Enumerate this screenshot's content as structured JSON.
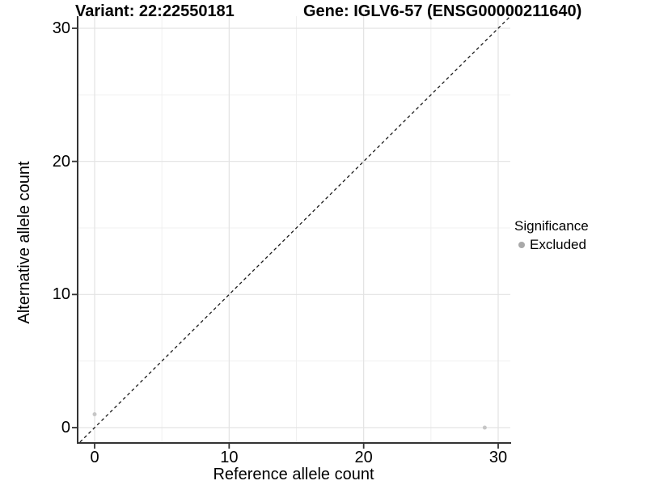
{
  "titles": {
    "variant": "Variant: 22:22550181",
    "gene": "Gene: IGLV6-57 (ENSG00000211640)"
  },
  "chart_data": {
    "type": "scatter",
    "title": "Variant: 22:22550181 / Gene: IGLV6-57 (ENSG00000211640)",
    "xlabel": "Reference allele count",
    "ylabel": "Alternative allele count",
    "x_ticks": [
      0,
      10,
      20,
      30
    ],
    "y_ticks": [
      0,
      10,
      20,
      30
    ],
    "x_minor_ticks": [
      5,
      15,
      25
    ],
    "y_minor_ticks": [
      5,
      15,
      25
    ],
    "xlim": [
      -1.32,
      30.9
    ],
    "ylim": [
      -1.09,
      30.9
    ],
    "grid": true,
    "identity_line": {
      "slope": 1,
      "intercept": 0,
      "style": "dashed"
    },
    "series": [
      {
        "name": "Excluded",
        "points": [
          [
            0,
            1
          ],
          [
            29,
            0
          ]
        ]
      }
    ],
    "legend": {
      "title": "Significance",
      "position": "right",
      "items": [
        {
          "label": "Excluded"
        }
      ]
    }
  },
  "style": {
    "background": "#ffffff",
    "point_color": "#c6c6c6",
    "legend_dot_color": "#a9a9a9",
    "grid_major_color": "#e3e3e3",
    "grid_minor_color": "#f0f0f0",
    "axis_line_color": "#333333",
    "tick_mark_color": "#333333",
    "dashed_line_color": "#1a1a1a",
    "text_color": "#000000"
  }
}
